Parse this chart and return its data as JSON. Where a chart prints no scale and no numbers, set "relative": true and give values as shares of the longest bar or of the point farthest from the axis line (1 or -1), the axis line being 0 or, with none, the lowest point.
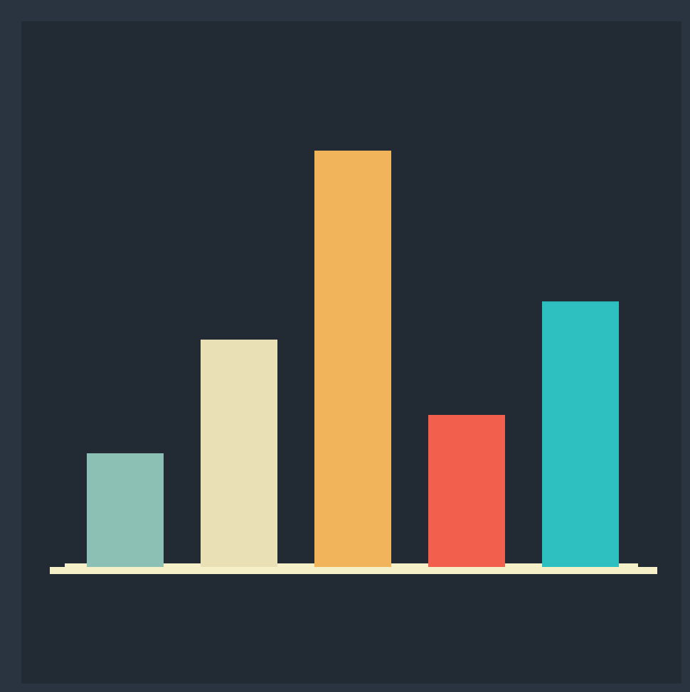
{
  "chart_data": {
    "type": "bar",
    "relative": true,
    "categories": [
      null,
      null,
      null,
      null,
      null
    ],
    "values": [
      0.273,
      0.546,
      1,
      0.365,
      0.638
    ],
    "colors": [
      "#8cc0b4",
      "#e9e0b5",
      "#f2b45b",
      "#f25f4c",
      "#2ec0c0"
    ],
    "legend": false
  }
}
